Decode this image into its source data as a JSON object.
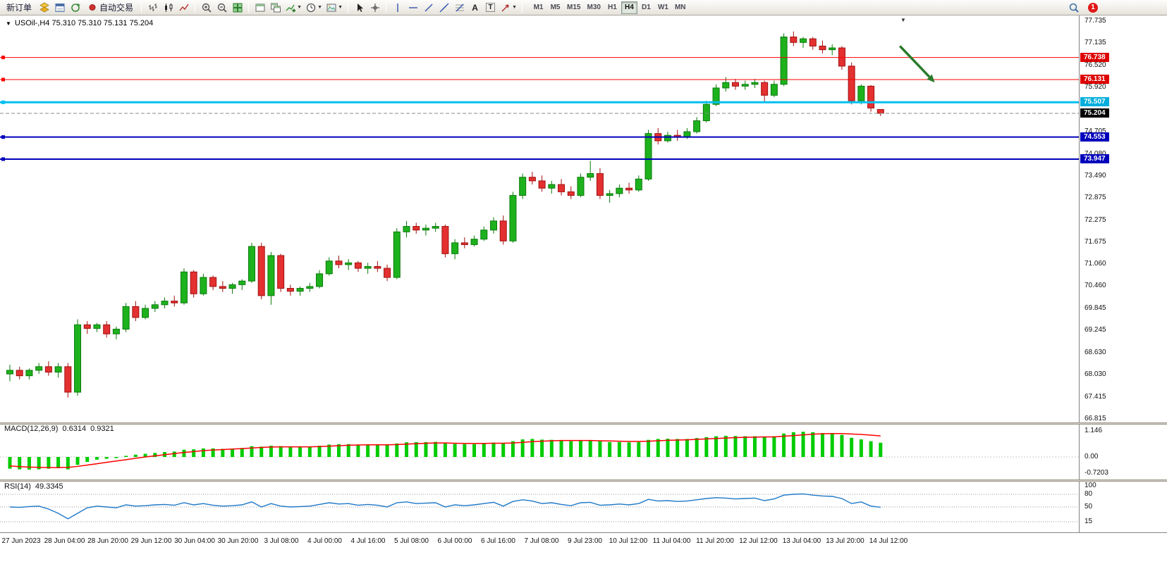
{
  "toolbar": {
    "new_order_label": "新订单",
    "auto_trading_label": "自动交易",
    "text_tool_glyph": "A",
    "label_tool_glyph": "T",
    "timeframes": [
      "M1",
      "M5",
      "M15",
      "M30",
      "H1",
      "H4",
      "D1",
      "W1",
      "MN"
    ],
    "active_timeframe": "H4",
    "notification_badge": "1"
  },
  "chart_header": {
    "collapse_glyph": "▼",
    "title": "USOil-,H4 75.310 75.310 75.131 75.204"
  },
  "macd_panel": {
    "title": "MACD(12,26,9)",
    "main_value": "0.6314",
    "signal_value": "0.9321",
    "scale_values": [
      1.146,
      0,
      -0.7203
    ],
    "scale_labels": [
      "1.146",
      "0.00",
      "-0.7203"
    ]
  },
  "rsi_panel": {
    "title": "RSI(14)",
    "value": "49.3345",
    "scale_values": [
      100,
      80,
      50,
      15
    ],
    "scale_labels": [
      "100",
      "80",
      "50",
      "15"
    ],
    "level_lines": [
      80,
      50,
      15
    ]
  },
  "colors": {
    "bull": "#1DB21D",
    "bull_edge": "#0B7A0B",
    "bear": "#E43030",
    "bear_edge": "#A01010",
    "macd_hist": "#00CC00",
    "macd_signal": "#FF0000",
    "rsi_line": "#1E78C8",
    "arrow": "#2A7A2A",
    "current_price_line": "#888888"
  },
  "chart_data": {
    "type": "candlestick",
    "symbol": "USOil-",
    "period": "H4",
    "ohlc_current": {
      "open": 75.31,
      "high": 75.31,
      "low": 75.131,
      "close": 75.204
    },
    "ylim": [
      66.815,
      77.735
    ],
    "y_ticks": [
      77.735,
      77.135,
      76.52,
      75.92,
      74.705,
      74.08,
      73.49,
      72.875,
      72.275,
      71.675,
      71.06,
      70.46,
      69.845,
      69.245,
      68.63,
      68.03,
      67.415,
      66.815
    ],
    "x_labels": [
      "27 Jun 2023",
      "28 Jun 04:00",
      "28 Jun 20:00",
      "29 Jun 12:00",
      "30 Jun 04:00",
      "30 Jun 20:00",
      "3 Jul 08:00",
      "4 Jul 00:00",
      "4 Jul 16:00",
      "5 Jul 08:00",
      "6 Jul 00:00",
      "6 Jul 16:00",
      "7 Jul 08:00",
      "9 Jul 23:00",
      "10 Jul 12:00",
      "11 Jul 04:00",
      "11 Jul 20:00",
      "12 Jul 12:00",
      "13 Jul 04:00",
      "13 Jul 20:00",
      "14 Jul 12:00"
    ],
    "levels": [
      {
        "price": 76.738,
        "label": "76.738",
        "color": "#FF0000",
        "chip": "#DD0000",
        "width": 1,
        "kind": "resistance-line"
      },
      {
        "price": 76.131,
        "label": "76.131",
        "color": "#FF0000",
        "chip": "#DD0000",
        "width": 1,
        "kind": "resistance-line"
      },
      {
        "price": 75.507,
        "label": "75.507",
        "color": "#00C0F0",
        "chip": "#00AEDC",
        "width": 3,
        "kind": "support-line"
      },
      {
        "price": 75.204,
        "label": "75.204",
        "color": "#888888",
        "chip": "#000000",
        "width": 1,
        "dashed": true,
        "kind": "current-price-line"
      },
      {
        "price": 74.553,
        "label": "74.553",
        "color": "#0000BB",
        "chip": "#0000BB",
        "width": 2,
        "kind": "support-line"
      },
      {
        "price": 73.947,
        "label": "73.947",
        "color": "#0000BB",
        "chip": "#0000BB",
        "width": 2,
        "kind": "support-line"
      }
    ],
    "arrow_annotation": {
      "from_index": 92,
      "from_price": 77.05,
      "to_index": 95.6,
      "to_price": 76.05
    },
    "candles": [
      [
        68.05,
        68.3,
        67.85,
        68.15
      ],
      [
        68.15,
        68.25,
        67.9,
        68.0
      ],
      [
        68.0,
        68.2,
        67.9,
        68.15
      ],
      [
        68.15,
        68.35,
        68.05,
        68.25
      ],
      [
        68.25,
        68.4,
        68.0,
        68.1
      ],
      [
        68.1,
        68.35,
        67.95,
        68.25
      ],
      [
        68.25,
        68.35,
        67.4,
        67.55
      ],
      [
        67.55,
        69.55,
        67.45,
        69.4
      ],
      [
        69.4,
        69.5,
        69.15,
        69.3
      ],
      [
        69.3,
        69.45,
        69.2,
        69.4
      ],
      [
        69.4,
        69.5,
        69.05,
        69.15
      ],
      [
        69.15,
        69.35,
        69.0,
        69.28
      ],
      [
        69.28,
        70.0,
        69.2,
        69.9
      ],
      [
        69.9,
        70.05,
        69.5,
        69.6
      ],
      [
        69.6,
        69.95,
        69.55,
        69.85
      ],
      [
        69.85,
        70.05,
        69.75,
        69.95
      ],
      [
        69.95,
        70.15,
        69.85,
        70.05
      ],
      [
        70.05,
        70.2,
        69.9,
        70.0
      ],
      [
        70.0,
        70.95,
        69.95,
        70.85
      ],
      [
        70.85,
        70.9,
        70.15,
        70.25
      ],
      [
        70.25,
        70.8,
        70.2,
        70.7
      ],
      [
        70.7,
        70.75,
        70.35,
        70.45
      ],
      [
        70.45,
        70.6,
        70.3,
        70.4
      ],
      [
        70.4,
        70.55,
        70.25,
        70.5
      ],
      [
        70.5,
        70.65,
        70.35,
        70.6
      ],
      [
        70.6,
        71.65,
        70.55,
        71.55
      ],
      [
        71.55,
        71.65,
        70.1,
        70.2
      ],
      [
        70.2,
        71.4,
        69.95,
        71.3
      ],
      [
        71.3,
        71.35,
        70.3,
        70.4
      ],
      [
        70.4,
        70.5,
        70.2,
        70.32
      ],
      [
        70.32,
        70.45,
        70.2,
        70.4
      ],
      [
        70.4,
        70.55,
        70.3,
        70.45
      ],
      [
        70.45,
        70.9,
        70.4,
        70.8
      ],
      [
        70.8,
        71.25,
        70.75,
        71.15
      ],
      [
        71.15,
        71.3,
        70.95,
        71.05
      ],
      [
        71.05,
        71.2,
        70.9,
        71.1
      ],
      [
        71.1,
        71.15,
        70.85,
        70.95
      ],
      [
        70.95,
        71.1,
        70.8,
        71.0
      ],
      [
        71.0,
        71.15,
        70.85,
        70.95
      ],
      [
        70.95,
        71.05,
        70.6,
        70.7
      ],
      [
        70.7,
        72.05,
        70.65,
        71.95
      ],
      [
        71.95,
        72.25,
        71.8,
        72.1
      ],
      [
        72.1,
        72.2,
        71.9,
        72.0
      ],
      [
        72.0,
        72.15,
        71.85,
        72.05
      ],
      [
        72.05,
        72.2,
        71.95,
        72.1
      ],
      [
        72.1,
        72.15,
        71.25,
        71.35
      ],
      [
        71.35,
        71.75,
        71.2,
        71.65
      ],
      [
        71.65,
        71.8,
        71.5,
        71.6
      ],
      [
        71.6,
        71.85,
        71.55,
        71.75
      ],
      [
        71.75,
        72.1,
        71.7,
        72.0
      ],
      [
        72.0,
        72.35,
        71.9,
        72.25
      ],
      [
        72.25,
        72.4,
        71.6,
        71.7
      ],
      [
        71.7,
        73.05,
        71.65,
        72.95
      ],
      [
        72.95,
        73.55,
        72.85,
        73.45
      ],
      [
        73.45,
        73.6,
        73.25,
        73.35
      ],
      [
        73.35,
        73.5,
        73.05,
        73.15
      ],
      [
        73.15,
        73.35,
        73.0,
        73.25
      ],
      [
        73.25,
        73.4,
        72.95,
        73.05
      ],
      [
        73.05,
        73.2,
        72.85,
        72.95
      ],
      [
        72.95,
        73.55,
        72.9,
        73.45
      ],
      [
        73.45,
        73.9,
        73.35,
        73.55
      ],
      [
        73.55,
        73.7,
        72.85,
        72.95
      ],
      [
        72.95,
        73.1,
        72.75,
        73.0
      ],
      [
        73.0,
        73.25,
        72.9,
        73.15
      ],
      [
        73.15,
        73.3,
        73.0,
        73.1
      ],
      [
        73.1,
        73.5,
        73.05,
        73.4
      ],
      [
        73.4,
        74.75,
        73.35,
        74.65
      ],
      [
        74.65,
        74.8,
        74.35,
        74.45
      ],
      [
        74.45,
        74.7,
        74.4,
        74.6
      ],
      [
        74.6,
        74.75,
        74.45,
        74.55
      ],
      [
        74.55,
        74.8,
        74.5,
        74.7
      ],
      [
        74.7,
        75.1,
        74.65,
        75.0
      ],
      [
        75.0,
        75.55,
        74.95,
        75.45
      ],
      [
        75.45,
        76.0,
        75.4,
        75.9
      ],
      [
        75.9,
        76.2,
        75.8,
        76.05
      ],
      [
        76.05,
        76.15,
        75.85,
        75.95
      ],
      [
        75.95,
        76.1,
        75.85,
        76.0
      ],
      [
        76.0,
        76.15,
        75.9,
        76.05
      ],
      [
        76.05,
        76.1,
        75.5,
        75.7
      ],
      [
        75.7,
        76.1,
        75.65,
        76.0
      ],
      [
        76.0,
        77.4,
        75.95,
        77.3
      ],
      [
        77.3,
        77.45,
        77.05,
        77.15
      ],
      [
        77.15,
        77.3,
        77.0,
        77.25
      ],
      [
        77.25,
        77.3,
        76.95,
        77.05
      ],
      [
        77.05,
        77.2,
        76.85,
        76.95
      ],
      [
        76.95,
        77.1,
        76.8,
        77.0
      ],
      [
        77.0,
        77.05,
        76.4,
        76.5
      ],
      [
        76.5,
        76.6,
        75.45,
        75.55
      ],
      [
        75.55,
        76.0,
        75.45,
        75.95
      ],
      [
        75.95,
        75.98,
        75.25,
        75.35
      ],
      [
        75.31,
        75.31,
        75.131,
        75.204
      ]
    ],
    "macd_histogram": [
      -0.52,
      -0.55,
      -0.56,
      -0.55,
      -0.52,
      -0.5,
      -0.55,
      -0.35,
      -0.22,
      -0.12,
      -0.08,
      -0.05,
      0.05,
      0.1,
      0.14,
      0.18,
      0.22,
      0.24,
      0.32,
      0.34,
      0.38,
      0.38,
      0.36,
      0.36,
      0.4,
      0.48,
      0.46,
      0.5,
      0.48,
      0.45,
      0.44,
      0.45,
      0.5,
      0.55,
      0.57,
      0.57,
      0.55,
      0.55,
      0.54,
      0.52,
      0.6,
      0.65,
      0.66,
      0.66,
      0.67,
      0.6,
      0.58,
      0.57,
      0.57,
      0.6,
      0.64,
      0.6,
      0.7,
      0.78,
      0.8,
      0.77,
      0.76,
      0.74,
      0.7,
      0.72,
      0.74,
      0.7,
      0.66,
      0.66,
      0.65,
      0.66,
      0.76,
      0.8,
      0.81,
      0.8,
      0.8,
      0.84,
      0.88,
      0.92,
      0.94,
      0.93,
      0.92,
      0.92,
      0.9,
      0.92,
      1.04,
      1.1,
      1.12,
      1.1,
      1.06,
      1.04,
      0.98,
      0.85,
      0.78,
      0.7,
      0.6314
    ],
    "macd_signal": [
      -0.4,
      -0.43,
      -0.45,
      -0.46,
      -0.47,
      -0.47,
      -0.46,
      -0.42,
      -0.36,
      -0.3,
      -0.24,
      -0.18,
      -0.12,
      -0.06,
      0.0,
      0.05,
      0.1,
      0.15,
      0.2,
      0.24,
      0.28,
      0.31,
      0.33,
      0.35,
      0.37,
      0.4,
      0.42,
      0.44,
      0.45,
      0.45,
      0.45,
      0.45,
      0.46,
      0.48,
      0.5,
      0.52,
      0.53,
      0.54,
      0.54,
      0.54,
      0.55,
      0.57,
      0.59,
      0.61,
      0.62,
      0.62,
      0.61,
      0.6,
      0.6,
      0.6,
      0.61,
      0.61,
      0.62,
      0.65,
      0.68,
      0.7,
      0.72,
      0.73,
      0.73,
      0.73,
      0.73,
      0.72,
      0.71,
      0.7,
      0.69,
      0.69,
      0.7,
      0.72,
      0.74,
      0.75,
      0.76,
      0.78,
      0.8,
      0.82,
      0.84,
      0.86,
      0.87,
      0.88,
      0.89,
      0.89,
      0.92,
      0.95,
      0.98,
      1.01,
      1.03,
      1.04,
      1.04,
      1.02,
      1.0,
      0.97,
      0.9321
    ],
    "rsi": [
      50,
      49,
      51,
      52,
      45,
      35,
      22,
      35,
      48,
      52,
      50,
      48,
      55,
      52,
      53,
      55,
      56,
      54,
      60,
      55,
      58,
      54,
      52,
      53,
      55,
      62,
      50,
      58,
      52,
      50,
      51,
      52,
      56,
      60,
      57,
      58,
      54,
      56,
      54,
      50,
      60,
      62,
      58,
      59,
      60,
      50,
      55,
      53,
      55,
      58,
      61,
      52,
      63,
      67,
      64,
      58,
      60,
      56,
      53,
      60,
      61,
      54,
      55,
      57,
      55,
      58,
      68,
      64,
      65,
      63,
      64,
      67,
      70,
      72,
      71,
      69,
      70,
      71,
      65,
      69,
      78,
      80,
      81,
      78,
      76,
      75,
      70,
      58,
      62,
      52,
      49.33
    ]
  }
}
